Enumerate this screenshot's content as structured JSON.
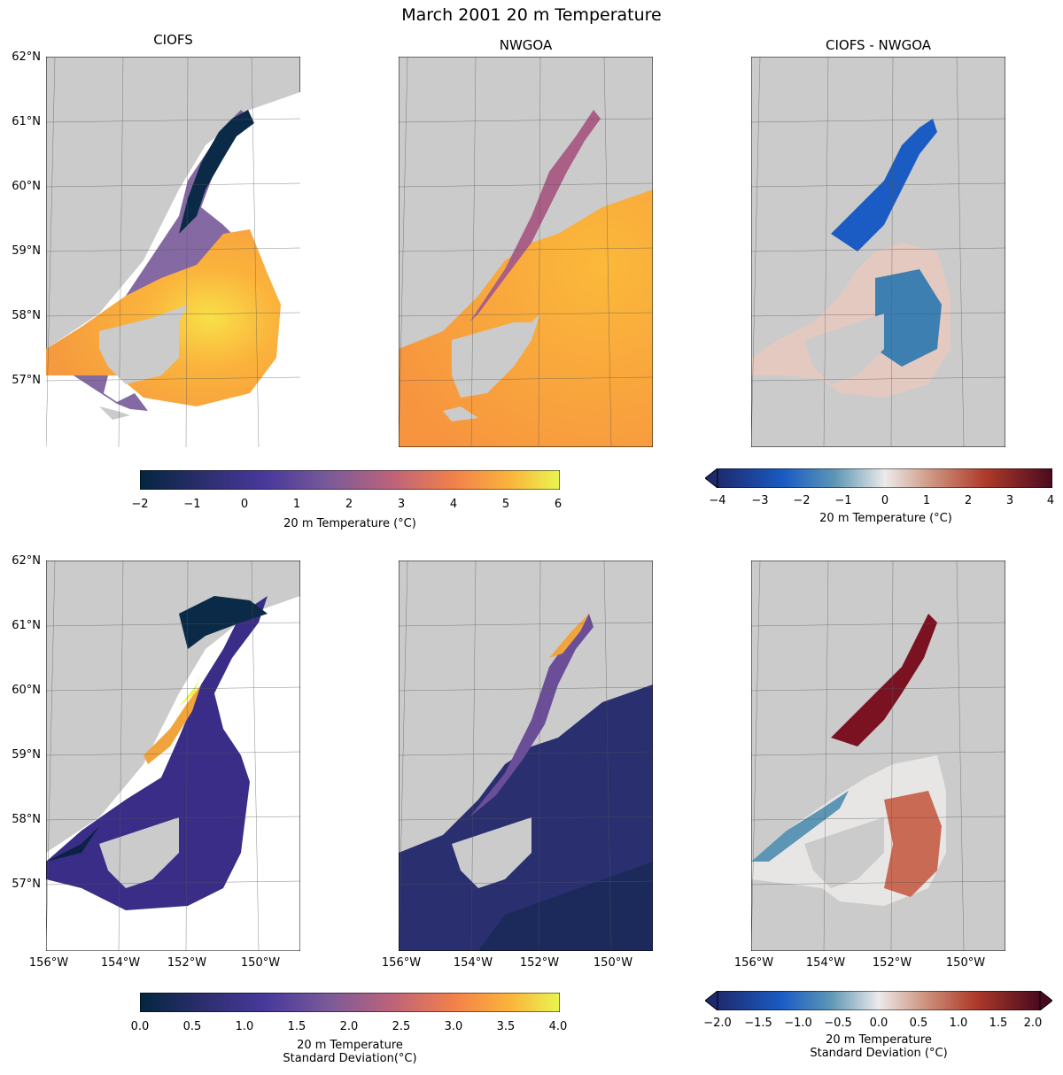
{
  "figure": {
    "title": "March 2001 20 m Temperature"
  },
  "panels": {
    "col_titles": [
      "CIOFS",
      "NWGOA",
      "CIOFS - NWGOA"
    ]
  },
  "axes": {
    "lat_labels": [
      "62°N",
      "61°N",
      "60°N",
      "59°N",
      "58°N",
      "57°N"
    ],
    "lon_labels": [
      "156°W",
      "154°W",
      "152°W",
      "150°W"
    ]
  },
  "colorbars": {
    "temp": {
      "ticks": [
        "−2",
        "−1",
        "0",
        "1",
        "2",
        "3",
        "4",
        "5",
        "6"
      ],
      "label": "20 m Temperature (°C)"
    },
    "temp_diff": {
      "ticks": [
        "−4",
        "−3",
        "−2",
        "−1",
        "0",
        "1",
        "2",
        "3",
        "4"
      ],
      "label": "20 m Temperature (°C)"
    },
    "std": {
      "ticks": [
        "0.0",
        "0.5",
        "1.0",
        "1.5",
        "2.0",
        "2.5",
        "3.0",
        "3.5",
        "4.0"
      ],
      "label_line1": "20 m Temperature",
      "label_line2": "Standard Deviation(°C)"
    },
    "std_diff": {
      "ticks": [
        "−2.0",
        "−1.5",
        "−1.0",
        "−0.5",
        "0.0",
        "0.5",
        "1.0",
        "1.5",
        "2.0"
      ],
      "label_line1": "20 m Temperature",
      "label_line2": "Standard Deviation (°C)"
    }
  },
  "colors": {
    "land": "#cbcbcb",
    "thermal_low": "#04263f",
    "thermal_high": "#e8f550",
    "balance_low": "#1e2a6e",
    "balance_high": "#4a0a1e"
  }
}
